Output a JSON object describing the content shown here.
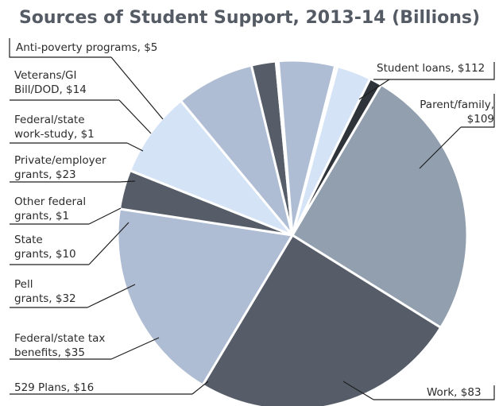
{
  "chart_data": {
    "type": "pie",
    "title": "Sources of Student Support, 2013-14 (Billions)",
    "unit": "Billions",
    "colors": {
      "light_gray_blue": "#929fae",
      "dark_slate": "#565d69",
      "periwinkle": "#afbdd4",
      "pale_blue": "#d4e3f6"
    },
    "slices": [
      {
        "name": "Student loans",
        "value": 112,
        "label_lines": [
          "Student loans,  $112"
        ],
        "color": "#929fae"
      },
      {
        "name": "Parent/family",
        "value": 109,
        "label_lines": [
          "Parent/family,",
          "$109"
        ],
        "color": "#565d69"
      },
      {
        "name": "Work",
        "value": 83,
        "label_lines": [
          "Work,  $83"
        ],
        "color": "#afbdd4"
      },
      {
        "name": "529 Plans",
        "value": 16,
        "label_lines": [
          "529 Plans,  $16"
        ],
        "color": "#565d69"
      },
      {
        "name": "Federal/state tax benefits",
        "value": 35,
        "label_lines": [
          "Federal/state tax",
          "benefits,  $35"
        ],
        "color": "#d4e3f6"
      },
      {
        "name": "Pell grants",
        "value": 32,
        "label_lines": [
          "Pell",
          "grants,  $32"
        ],
        "color": "#afbdd4"
      },
      {
        "name": "State grants",
        "value": 10,
        "label_lines": [
          "State",
          "grants,  $10"
        ],
        "color": "#565d69"
      },
      {
        "name": "Other federal grants",
        "value": 1,
        "label_lines": [
          "Other federal",
          "grants,  $1"
        ],
        "color": "#d4e3f6"
      },
      {
        "name": "Private/employer grants",
        "value": 23,
        "label_lines": [
          "Private/employer",
          "grants,  $23"
        ],
        "color": "#afbdd4"
      },
      {
        "name": "Federal/state work-study",
        "value": 1,
        "label_lines": [
          "Federal/state",
          "work-study,  $1"
        ],
        "color": "#565d69"
      },
      {
        "name": "Veterans/GI Bill/DOD",
        "value": 14,
        "label_lines": [
          "Veterans/GI",
          "Bill/DOD,  $14"
        ],
        "color": "#d4e3f6"
      },
      {
        "name": "Anti-poverty programs",
        "value": 5,
        "label_lines": [
          "Anti-poverty programs,  $5"
        ],
        "color": "#2f343b"
      }
    ]
  }
}
